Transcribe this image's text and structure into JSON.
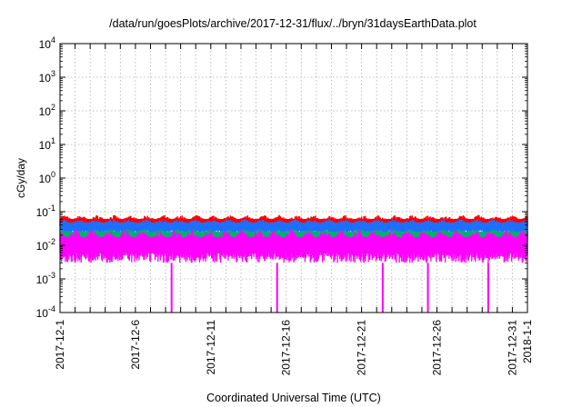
{
  "chart_data": {
    "type": "line",
    "title": "/data/run/goesPlots/archive/2017-12-31/flux/../bryn/31daysEarthData.plot",
    "xlabel": "Coordinated Universal Time (UTC)",
    "ylabel": "cGy/day",
    "yscale": "log",
    "ylim": [
      0.0001,
      10000
    ],
    "xlim": [
      "2017-12-01",
      "2018-01-01"
    ],
    "grid": true,
    "x_ticks": [
      "2017-12-1",
      "2017-12-6",
      "2017-12-11",
      "2017-12-16",
      "2017-12-21",
      "2017-12-26",
      "2017-12-31",
      "2018-1-1"
    ],
    "y_ticks": [
      {
        "value": 0.0001,
        "base": "10",
        "exp": "-4"
      },
      {
        "value": 0.001,
        "base": "10",
        "exp": "-3"
      },
      {
        "value": 0.01,
        "base": "10",
        "exp": "-2"
      },
      {
        "value": 0.1,
        "base": "10",
        "exp": "-1"
      },
      {
        "value": 1,
        "base": "10",
        "exp": "0"
      },
      {
        "value": 10,
        "base": "10",
        "exp": "1"
      },
      {
        "value": 100,
        "base": "10",
        "exp": "2"
      },
      {
        "value": 1000,
        "base": "10",
        "exp": "3"
      },
      {
        "value": 10000,
        "base": "10",
        "exp": "4"
      }
    ],
    "series": [
      {
        "color": "#ff0000",
        "typical": 0.05,
        "peak": 0.08,
        "low": 0.03
      },
      {
        "color": "#1e6fff",
        "typical": 0.04,
        "peak": 0.06,
        "low": 0.02
      },
      {
        "color": "#00b070",
        "typical": 0.022,
        "peak": 0.03,
        "low": 0.012
      },
      {
        "color": "#ff00ff",
        "typical": 0.012,
        "peak": 0.03,
        "low": 0.003
      }
    ],
    "magenta_dropouts": [
      "2017-12-08",
      "2017-12-15",
      "2017-12-22",
      "2017-12-25",
      "2017-12-29"
    ]
  }
}
